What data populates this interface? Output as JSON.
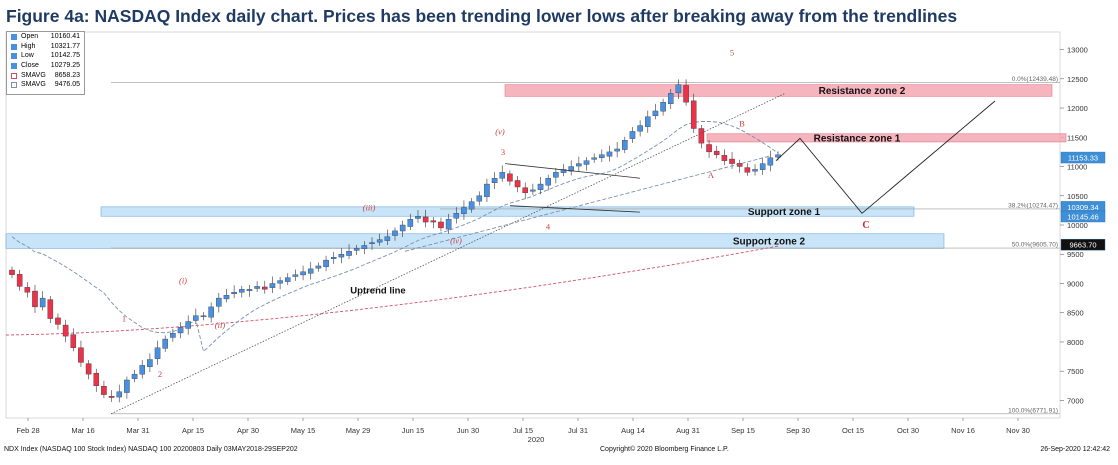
{
  "title": "Figure 4a: NASDAQ Index daily chart. Prices has been trending lower lows after breaking away from the trendlines",
  "legend": [
    {
      "name": "Open",
      "value": "10160.41",
      "color": "#4a90e2"
    },
    {
      "name": "High",
      "value": "10321.77",
      "color": "#4a90e2"
    },
    {
      "name": "Low",
      "value": "10142.75",
      "color": "#4a90e2"
    },
    {
      "name": "Close",
      "value": "10279.25",
      "color": "#4a90e2"
    },
    {
      "name": "SMAVG",
      "value": "8658.23",
      "color": "#e06070"
    },
    {
      "name": "SMAVG",
      "value": "9476.05",
      "color": "#7a8fb0"
    }
  ],
  "footer": {
    "left": "NDX Index (NASDAQ 100 Stock Index) NASDAQ 100 20200803  Daily 03MAY2018-29SEP202",
    "middle": "Copyright© 2020 Bloomberg Finance L.P.",
    "right": "26-Sep-2020 12:42:42"
  },
  "colors": {
    "up": "#4a90e2",
    "down": "#e8334a",
    "sma_slow": "#d45060",
    "sma_fast": "#7a8fb0",
    "support_fill": "#bfe0f7",
    "resistance_fill": "#f4a7b3",
    "label_box": "#3f8fd6"
  },
  "chart_data": {
    "type": "candlestick",
    "title": "",
    "ylim": [
      6700,
      13300
    ],
    "y_ticks": [
      7000,
      7500,
      8000,
      8500,
      9000,
      9500,
      10000,
      10500,
      11000,
      11500,
      12000,
      12500,
      13000
    ],
    "x_tick_labels": [
      "Feb 28",
      "Mar 16",
      "Mar 31",
      "Apr 15",
      "Apr 30",
      "May 15",
      "May 29",
      "Jun 15",
      "Jun 30",
      "Jul 15",
      "Jul 31",
      "Aug 14",
      "Aug 31",
      "Sep 15",
      "Sep 30",
      "Oct 15",
      "Oct 30",
      "Nov 16",
      "Nov 30"
    ],
    "year_label": "2020",
    "price_series": [
      9150,
      8950,
      8850,
      8600,
      8750,
      8400,
      8300,
      8100,
      7900,
      7650,
      7450,
      7250,
      7100,
      7050,
      7150,
      7350,
      7450,
      7600,
      7700,
      7900,
      8050,
      8150,
      8250,
      8350,
      8450,
      8450,
      8600,
      8750,
      8800,
      8850,
      8900,
      8900,
      8950,
      8900,
      9000,
      9050,
      9100,
      9150,
      9200,
      9250,
      9300,
      9400,
      9450,
      9500,
      9550,
      9600,
      9650,
      9700,
      9750,
      9800,
      9900,
      10000,
      10100,
      10150,
      10050,
      10050,
      9950,
      10100,
      10200,
      10300,
      10400,
      10500,
      10700,
      10800,
      10900,
      10750,
      10650,
      10550,
      10600,
      10700,
      10800,
      10900,
      10950,
      11000,
      11050,
      11100,
      11150,
      11200,
      11250,
      11300,
      11450,
      11600,
      11700,
      11850,
      11950,
      12100,
      12250,
      12400,
      12100,
      11650,
      11400,
      11250,
      11200,
      11100,
      11050,
      11000,
      10900,
      10950,
      11050,
      11150,
      11200
    ],
    "annotations": {
      "zones": [
        {
          "label": "Resistance zone 2",
          "low": 12200,
          "high": 12400
        },
        {
          "label": "Resistance zone 1",
          "low": 11420,
          "high": 11560
        },
        {
          "label": "Support zone 1",
          "low": 10150,
          "high": 10310
        },
        {
          "label": "Support zone 2",
          "low": 9600,
          "high": 9850
        }
      ],
      "fib_levels": [
        {
          "label": "0.0%(12439.48)",
          "value": 12439.48
        },
        {
          "label": "38.2%(10274.47)",
          "value": 10274.47
        },
        {
          "label": "50.0%(9605.70)",
          "value": 9605.7
        },
        {
          "label": "100.0%(6771.91)",
          "value": 6771.91
        }
      ],
      "price_tags": [
        {
          "label": "11153.33",
          "value": 11153.33
        },
        {
          "label": "10309.34",
          "value": 10309.34
        },
        {
          "label": "10145.46",
          "value": 10145.46
        },
        {
          "label": "9663.70",
          "value": 9663.7
        }
      ],
      "wave_labels": [
        {
          "label": "5",
          "value": 12900
        },
        {
          "label": "(v)",
          "value": 11550
        },
        {
          "label": "3",
          "value": 11200
        },
        {
          "label": "B",
          "value": 11680
        },
        {
          "label": "A",
          "value": 10800
        },
        {
          "label": "(iii)",
          "value": 10250
        },
        {
          "label": "4",
          "value": 9920
        },
        {
          "label": "(iv)",
          "value": 9680
        },
        {
          "label": "(i)",
          "value": 9000
        },
        {
          "label": "(ii)",
          "value": 8240
        },
        {
          "label": "1",
          "value": 8350
        },
        {
          "label": "2",
          "value": 7400
        },
        {
          "label": "C",
          "value": 9950
        }
      ],
      "trendline_label": "Uptrend line"
    },
    "smavg_slow_value": 8658.23,
    "smavg_fast_value": 9476.05
  }
}
